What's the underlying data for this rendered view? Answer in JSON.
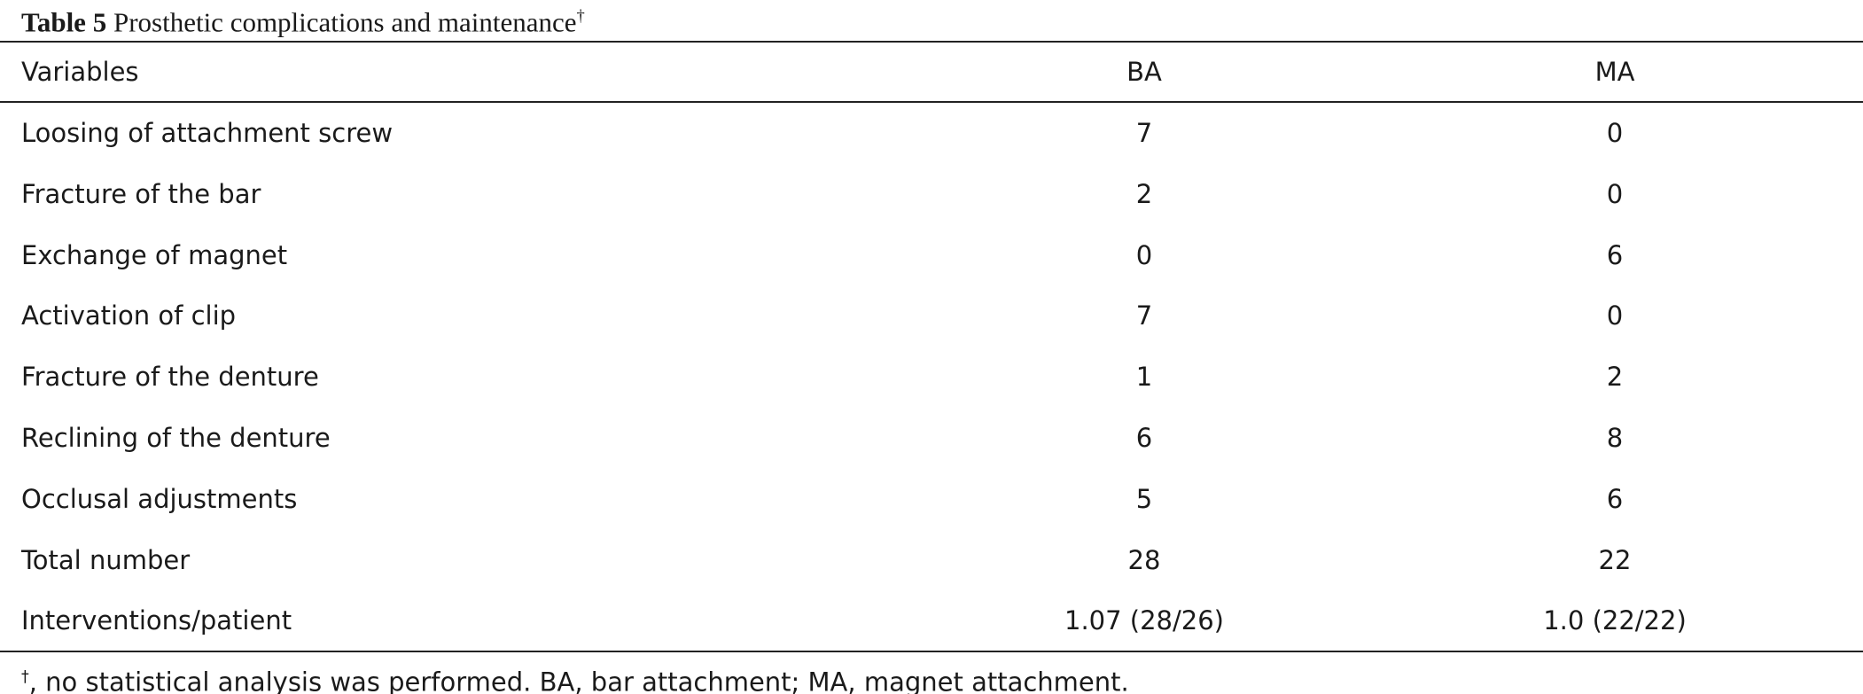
{
  "title": {
    "label": "Table 5",
    "text": "Prosthetic complications and maintenance",
    "mark": "†"
  },
  "table": {
    "header": [
      "Variables",
      "BA",
      "MA"
    ],
    "rows": [
      [
        "Loosing of attachment screw",
        7,
        0
      ],
      [
        "Fracture of the bar",
        2,
        0
      ],
      [
        "Exchange of magnet",
        0,
        6
      ],
      [
        "Activation of clip",
        7,
        0
      ],
      [
        "Fracture of the denture",
        1,
        2
      ],
      [
        "Reclining of the denture",
        6,
        8
      ],
      [
        "Occlusal adjustments",
        5,
        6
      ],
      [
        "Total number",
        28,
        22
      ],
      [
        "Interventions/patient",
        "1.07 (28/26)",
        "1.0 (22/22)"
      ]
    ]
  },
  "footnote": {
    "mark": "†",
    "text": ", no statistical analysis was performed. BA, bar attachment; MA, magnet attachment."
  }
}
